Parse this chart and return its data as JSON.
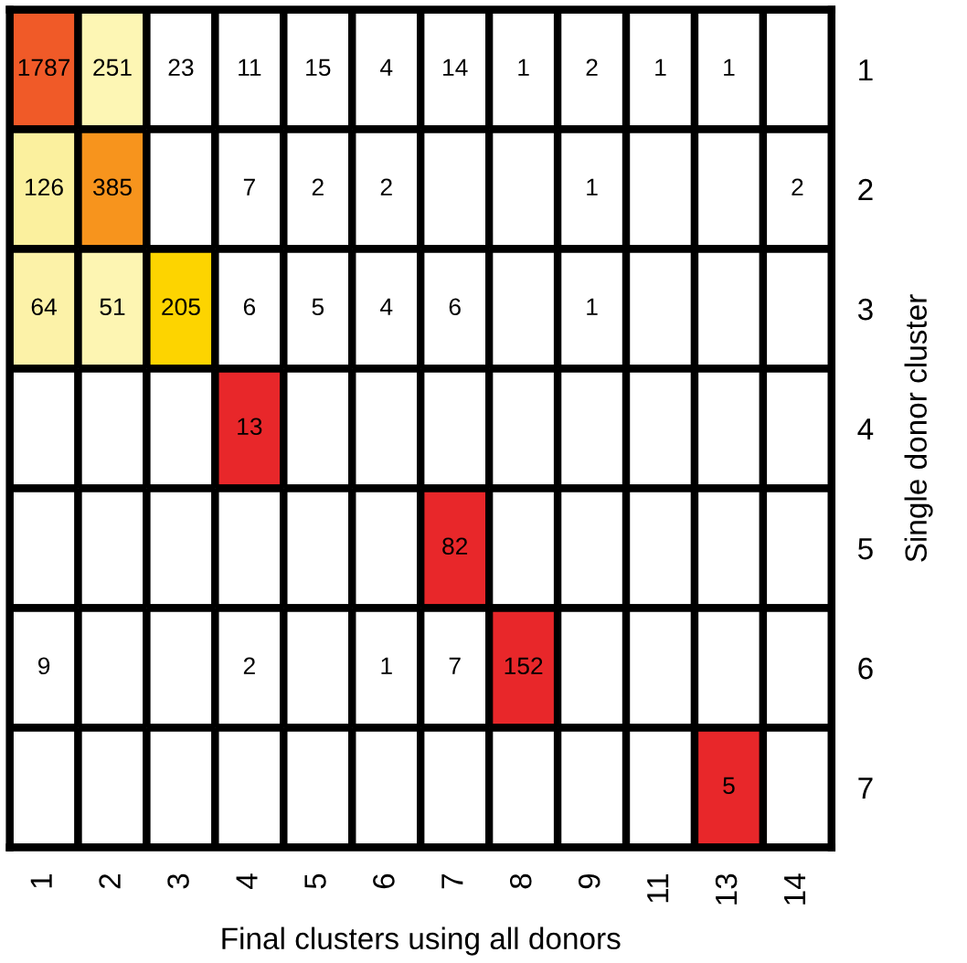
{
  "chart_data": {
    "type": "heatmap",
    "xlabel": "Final clusters using all donors",
    "ylabel": "Single donor cluster",
    "categories": [
      "1",
      "2",
      "3",
      "4",
      "5",
      "6",
      "7",
      "8",
      "9",
      "11",
      "13",
      "14"
    ],
    "y_categories": [
      "1",
      "2",
      "3",
      "4",
      "5",
      "6",
      "7"
    ],
    "cells": [
      [
        1787,
        251,
        23,
        11,
        15,
        4,
        14,
        1,
        2,
        1,
        1,
        null
      ],
      [
        126,
        385,
        null,
        7,
        2,
        2,
        null,
        null,
        1,
        null,
        null,
        2
      ],
      [
        64,
        51,
        205,
        6,
        5,
        4,
        6,
        null,
        1,
        null,
        null,
        null
      ],
      [
        null,
        null,
        null,
        13,
        null,
        null,
        null,
        null,
        null,
        null,
        null,
        null
      ],
      [
        null,
        null,
        null,
        null,
        null,
        null,
        82,
        null,
        null,
        null,
        null,
        null
      ],
      [
        9,
        null,
        null,
        2,
        null,
        1,
        7,
        152,
        null,
        null,
        null,
        null
      ],
      [
        null,
        null,
        null,
        null,
        null,
        null,
        null,
        null,
        null,
        null,
        5,
        null
      ]
    ],
    "colors": [
      [
        "#f05a28",
        "#fdf6b4",
        null,
        null,
        null,
        null,
        null,
        null,
        null,
        null,
        null,
        null
      ],
      [
        "#fbf09e",
        "#f7941d",
        null,
        null,
        null,
        null,
        null,
        null,
        null,
        null,
        null,
        null
      ],
      [
        "#fcf2a8",
        "#fdf5b2",
        "#fdd400",
        null,
        null,
        null,
        null,
        null,
        null,
        null,
        null,
        null
      ],
      [
        null,
        null,
        null,
        "#e8272a",
        null,
        null,
        null,
        null,
        null,
        null,
        null,
        null
      ],
      [
        null,
        null,
        null,
        null,
        null,
        null,
        "#e8272a",
        null,
        null,
        null,
        null,
        null
      ],
      [
        null,
        null,
        null,
        null,
        null,
        null,
        null,
        "#e8272a",
        null,
        null,
        null,
        null
      ],
      [
        null,
        null,
        null,
        null,
        null,
        null,
        null,
        null,
        null,
        null,
        "#e8272a",
        null
      ]
    ],
    "data_labels": true,
    "grid": false,
    "legend": false
  }
}
